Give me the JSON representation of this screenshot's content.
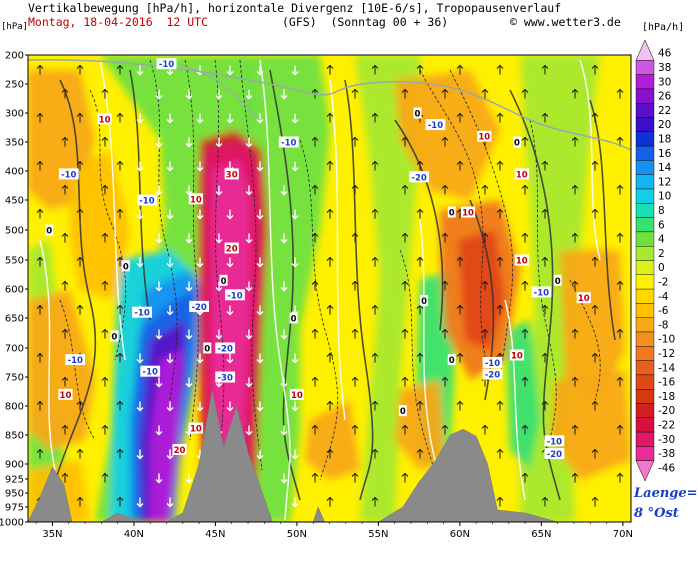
{
  "header": {
    "line1": "Vertikalbewegung [hPa/h], horizontale Divergenz [10E-6/s], Tropopausenverlauf",
    "date": "Montag, 18-04-2016  12 UTC",
    "model": "(GFS)  (Sonntag 00 + 36)",
    "copyright": "© www.wetter3.de"
  },
  "unit_left": "[hPa]",
  "unit_right": "[hPa/h]",
  "laenge": {
    "line1": "Laenge=",
    "line2": "8 °Ost"
  },
  "colors": {
    "ascent": "#f2a314",
    "descent": "#b4107a",
    "terrain": "#8a8a8a"
  },
  "chart_data": {
    "type": "heatmap",
    "title": "Vertikalbewegung [hPa/h], horizontale Divergenz [10E-6/s], Tropopausenverlauf",
    "x_label_ticks": [
      "35N",
      "40N",
      "45N",
      "50N",
      "55N",
      "60N",
      "65N",
      "70N"
    ],
    "x_values": [
      35,
      40,
      45,
      50,
      55,
      60,
      65,
      70
    ],
    "xlim": [
      33.5,
      70.5
    ],
    "y_ticks": [
      200,
      250,
      300,
      350,
      400,
      450,
      500,
      550,
      600,
      650,
      700,
      750,
      800,
      850,
      900,
      925,
      950,
      975,
      1000
    ],
    "ylim": [
      200,
      1000
    ],
    "colorbar": {
      "labels": [
        "46",
        "38",
        "30",
        "26",
        "22",
        "20",
        "18",
        "16",
        "14",
        "12",
        "10",
        "8",
        "6",
        "4",
        "2",
        "0",
        "-2",
        "-4",
        "-6",
        "-8",
        "-10",
        "-12",
        "-14",
        "-16",
        "-18",
        "-20",
        "-22",
        "-30",
        "-38",
        "-46"
      ],
      "colors": [
        "#f2bfee",
        "#cc58e0",
        "#b01cd8",
        "#8a10d0",
        "#5a10c8",
        "#3810c8",
        "#1030d8",
        "#1460e6",
        "#1890f0",
        "#14b4f0",
        "#10d0e4",
        "#18e0b4",
        "#38e070",
        "#70e040",
        "#a8e830",
        "#dcf020",
        "#fff000",
        "#ffd800",
        "#ffc000",
        "#f8a818",
        "#f09020",
        "#f07820",
        "#e86020",
        "#e04818",
        "#d83810",
        "#d02020",
        "#d81040",
        "#e01868",
        "#e82c98",
        "#f078c8"
      ]
    },
    "contour_labels": [
      {
        "text": "-10",
        "lon": 42.0,
        "p": 215
      },
      {
        "text": "10",
        "lon": 38.2,
        "p": 310
      },
      {
        "text": "-10",
        "lon": 36.0,
        "p": 405
      },
      {
        "text": "-10",
        "lon": 40.8,
        "p": 450
      },
      {
        "text": "10",
        "lon": 43.8,
        "p": 448
      },
      {
        "text": "30",
        "lon": 46.0,
        "p": 405
      },
      {
        "text": "-10",
        "lon": 49.5,
        "p": 350
      },
      {
        "text": "20",
        "lon": 46.0,
        "p": 530
      },
      {
        "text": "-10",
        "lon": 46.2,
        "p": 610
      },
      {
        "text": "-20",
        "lon": 44.0,
        "p": 630
      },
      {
        "text": "-10",
        "lon": 40.5,
        "p": 640
      },
      {
        "text": "-10",
        "lon": 36.4,
        "p": 720
      },
      {
        "text": "-10",
        "lon": 41.0,
        "p": 740
      },
      {
        "text": "-20",
        "lon": 45.6,
        "p": 700
      },
      {
        "text": "-30",
        "lon": 45.6,
        "p": 750
      },
      {
        "text": "10",
        "lon": 35.8,
        "p": 780
      },
      {
        "text": "10",
        "lon": 50.0,
        "p": 780
      },
      {
        "text": "10",
        "lon": 43.8,
        "p": 838
      },
      {
        "text": "20",
        "lon": 42.8,
        "p": 875
      },
      {
        "text": "-10",
        "lon": 58.5,
        "p": 320
      },
      {
        "text": "10",
        "lon": 61.5,
        "p": 340
      },
      {
        "text": "-20",
        "lon": 57.5,
        "p": 410
      },
      {
        "text": "10",
        "lon": 60.5,
        "p": 470
      },
      {
        "text": "10",
        "lon": 63.8,
        "p": 550
      },
      {
        "text": "-10",
        "lon": 65.0,
        "p": 605
      },
      {
        "text": "10",
        "lon": 67.6,
        "p": 615
      },
      {
        "text": "-10",
        "lon": 62.0,
        "p": 725
      },
      {
        "text": "-20",
        "lon": 62.0,
        "p": 745
      },
      {
        "text": "10",
        "lon": 63.5,
        "p": 712
      },
      {
        "text": "-10",
        "lon": 65.8,
        "p": 860
      },
      {
        "text": "-20",
        "lon": 65.8,
        "p": 882
      },
      {
        "text": "10",
        "lon": 63.8,
        "p": 405
      }
    ],
    "zero_labels": [
      {
        "lon": 45.5,
        "p": 585
      },
      {
        "lon": 39.5,
        "p": 560
      },
      {
        "lon": 34.8,
        "p": 500
      },
      {
        "lon": 38.8,
        "p": 680
      },
      {
        "lon": 49.8,
        "p": 650
      },
      {
        "lon": 56.5,
        "p": 808
      },
      {
        "lon": 57.8,
        "p": 620
      },
      {
        "lon": 59.5,
        "p": 470
      },
      {
        "lon": 63.5,
        "p": 350
      },
      {
        "lon": 66.0,
        "p": 585
      },
      {
        "lon": 59.5,
        "p": 720
      },
      {
        "lon": 57.4,
        "p": 300
      },
      {
        "lon": 44.5,
        "p": 700
      }
    ],
    "terrain_profile": [
      {
        "lon": 33.5,
        "p": 1000
      },
      {
        "lon": 34.2,
        "p": 960
      },
      {
        "lon": 35.0,
        "p": 905
      },
      {
        "lon": 35.7,
        "p": 935
      },
      {
        "lon": 36.2,
        "p": 1000
      },
      {
        "lon": 38.0,
        "p": 1000
      },
      {
        "lon": 39.0,
        "p": 985
      },
      {
        "lon": 40.5,
        "p": 1000
      },
      {
        "lon": 42.0,
        "p": 1000
      },
      {
        "lon": 43.0,
        "p": 985
      },
      {
        "lon": 44.0,
        "p": 900
      },
      {
        "lon": 44.8,
        "p": 772
      },
      {
        "lon": 45.5,
        "p": 870
      },
      {
        "lon": 46.3,
        "p": 800
      },
      {
        "lon": 47.0,
        "p": 880
      },
      {
        "lon": 47.7,
        "p": 935
      },
      {
        "lon": 48.5,
        "p": 1000
      },
      {
        "lon": 51.0,
        "p": 1000
      },
      {
        "lon": 51.3,
        "p": 975
      },
      {
        "lon": 51.7,
        "p": 1000
      },
      {
        "lon": 55.0,
        "p": 1000
      },
      {
        "lon": 56.5,
        "p": 975
      },
      {
        "lon": 57.5,
        "p": 930
      },
      {
        "lon": 58.5,
        "p": 895
      },
      {
        "lon": 59.4,
        "p": 850
      },
      {
        "lon": 60.2,
        "p": 840
      },
      {
        "lon": 61.0,
        "p": 852
      },
      {
        "lon": 61.7,
        "p": 900
      },
      {
        "lon": 62.3,
        "p": 980
      },
      {
        "lon": 64.0,
        "p": 985
      },
      {
        "lon": 66.0,
        "p": 1000
      },
      {
        "lon": 70.5,
        "p": 1000
      }
    ]
  }
}
